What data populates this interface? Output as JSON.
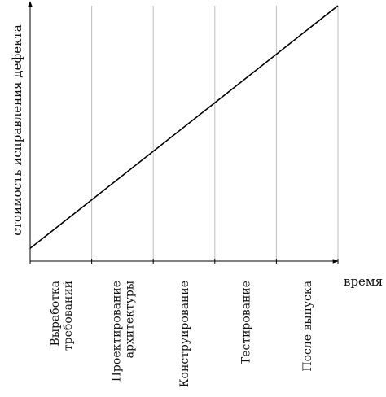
{
  "chart_data": {
    "type": "line",
    "xlabel": "время",
    "ylabel": "стоимость исправления дефекта",
    "categories": [
      [
        "Выработка",
        "требований"
      ],
      [
        "Проектирование",
        "архитектуры"
      ],
      [
        "Конструирование"
      ],
      [
        "Тестирование"
      ],
      [
        "После выпуска"
      ]
    ],
    "grid": true,
    "series": [
      {
        "x": [
          0,
          5
        ],
        "y": [
          0.05,
          1.0
        ]
      }
    ],
    "colors": {
      "line": "#000000",
      "axis": "#000000",
      "grid": "#bdbdbd"
    }
  }
}
